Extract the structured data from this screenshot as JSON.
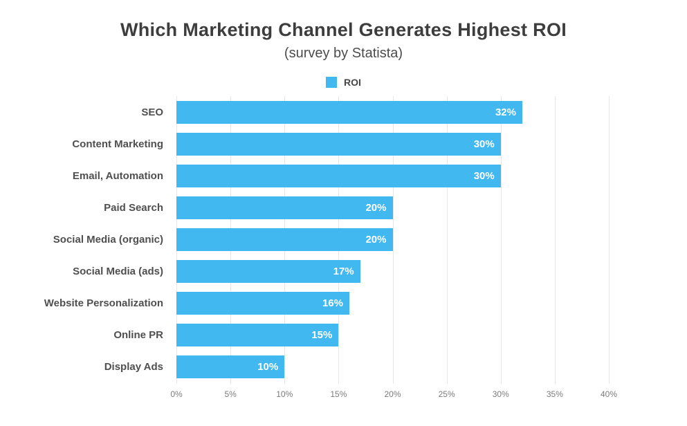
{
  "chart_data": {
    "type": "bar",
    "orientation": "horizontal",
    "title": "Which Marketing Channel Generates Highest ROI",
    "subtitle": "(survey by Statista)",
    "legend": [
      {
        "label": "ROI",
        "color": "#41B9F0"
      }
    ],
    "categories": [
      "SEO",
      "Content Marketing",
      "Email, Automation",
      "Paid Search",
      "Social Media (organic)",
      "Social Media (ads)",
      "Website Personalization",
      "Online PR",
      "Display Ads"
    ],
    "values": [
      32,
      30,
      30,
      20,
      20,
      17,
      16,
      15,
      10
    ],
    "value_labels": [
      "32%",
      "30%",
      "30%",
      "20%",
      "20%",
      "17%",
      "16%",
      "15%",
      "10%"
    ],
    "xlim": [
      0,
      40
    ],
    "x_ticks": [
      "0%",
      "5%",
      "10%",
      "15%",
      "20%",
      "25%",
      "30%",
      "35%",
      "40%"
    ],
    "x_tick_values": [
      0,
      5,
      10,
      15,
      20,
      25,
      30,
      35,
      40
    ],
    "grid": true,
    "bar_color": "#41B9F0",
    "value_label_color": "#ffffff"
  }
}
